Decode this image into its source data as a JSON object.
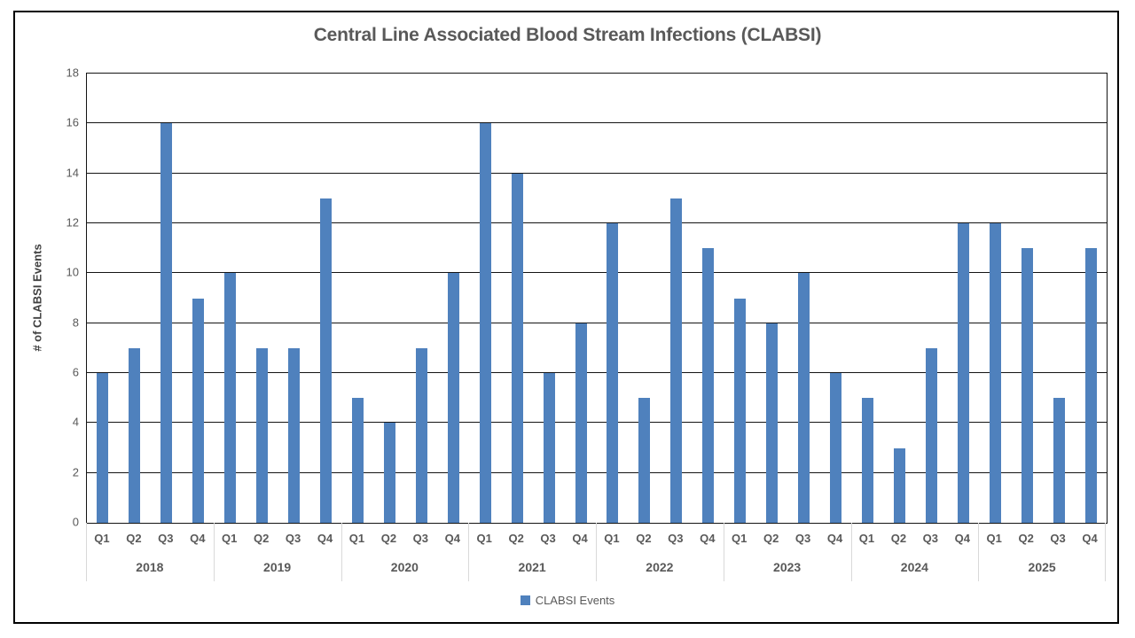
{
  "chart_data": {
    "type": "bar",
    "title": "Central Line Associated Blood Stream Infections (CLABSI)",
    "xlabel": "",
    "ylabel": "# of CLABSI Events",
    "ylim": [
      0,
      18
    ],
    "ytick_step": 2,
    "grid": true,
    "legend": {
      "position": "bottom",
      "entries": [
        {
          "label": "CLABSI Events",
          "color": "#4F81BD"
        }
      ]
    },
    "quarter_labels": [
      "Q1",
      "Q2",
      "Q3",
      "Q4"
    ],
    "groups": [
      {
        "label": "2018",
        "values": [
          6,
          7,
          16,
          9
        ]
      },
      {
        "label": "2019",
        "values": [
          10,
          7,
          7,
          13
        ]
      },
      {
        "label": "2020",
        "values": [
          5,
          4,
          7,
          10
        ]
      },
      {
        "label": "2021",
        "values": [
          16,
          14,
          6,
          8
        ]
      },
      {
        "label": "2022",
        "values": [
          12,
          5,
          13,
          11
        ]
      },
      {
        "label": "2023",
        "values": [
          9,
          8,
          10,
          6
        ]
      },
      {
        "label": "2024",
        "values": [
          5,
          3,
          7,
          12
        ]
      },
      {
        "label": "2025",
        "values": [
          12,
          11,
          5,
          11
        ]
      }
    ],
    "colors": {
      "bar": "#4F81BD",
      "gridline": "#141414",
      "text": "#595959",
      "group_separator": "#D9D9D9",
      "frame": "#000000"
    }
  }
}
